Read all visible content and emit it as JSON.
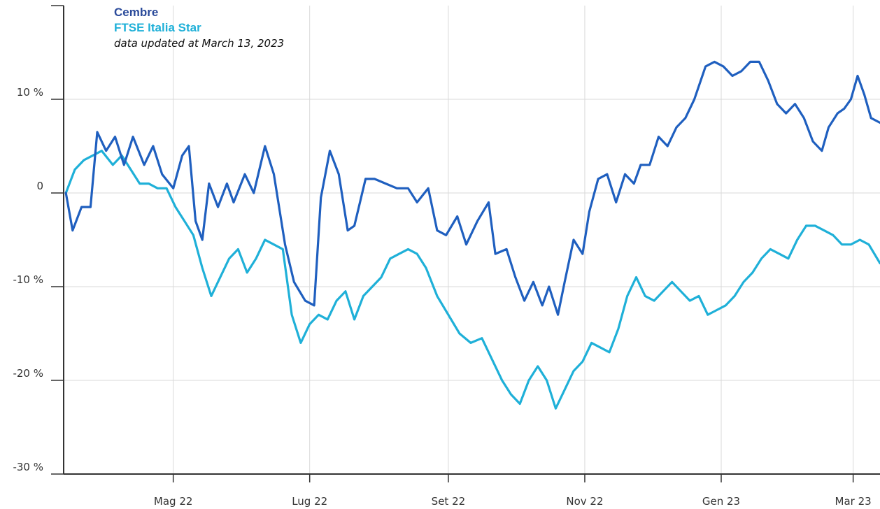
{
  "chart_data": {
    "type": "line",
    "legend": {
      "series1_label": "Cembre",
      "series2_label": "FTSE Italia Star",
      "note": "data updated at March 13, 2023"
    },
    "y_ticks": [
      {
        "value": 10,
        "label": "10 %"
      },
      {
        "value": 0,
        "label": "0"
      },
      {
        "value": -10,
        "label": "-10 %"
      },
      {
        "value": -20,
        "label": "-20 %"
      },
      {
        "value": -30,
        "label": "-30 %"
      }
    ],
    "x_ticks": [
      {
        "date": "2022-05-01",
        "label": "Mag 22"
      },
      {
        "date": "2022-07-01",
        "label": "Lug 22"
      },
      {
        "date": "2022-09-01",
        "label": "Set 22"
      },
      {
        "date": "2022-11-01",
        "label": "Nov 22"
      },
      {
        "date": "2023-01-01",
        "label": "Gen 23"
      },
      {
        "date": "2023-03-01",
        "label": "Mar 23"
      }
    ],
    "ylim": [
      -30,
      20
    ],
    "xlim": [
      "2022-03-13",
      "2023-03-13"
    ],
    "grid": true,
    "legend_position": "top-left",
    "series": [
      {
        "name": "Cembre",
        "color": "#1f5fbf",
        "points": [
          [
            "2022-03-14",
            0.0
          ],
          [
            "2022-03-17",
            -4.0
          ],
          [
            "2022-03-21",
            -1.5
          ],
          [
            "2022-03-25",
            -1.5
          ],
          [
            "2022-03-28",
            6.5
          ],
          [
            "2022-04-01",
            4.5
          ],
          [
            "2022-04-05",
            6.0
          ],
          [
            "2022-04-09",
            3.0
          ],
          [
            "2022-04-13",
            6.0
          ],
          [
            "2022-04-18",
            3.0
          ],
          [
            "2022-04-22",
            5.0
          ],
          [
            "2022-04-26",
            2.0
          ],
          [
            "2022-05-01",
            0.5
          ],
          [
            "2022-05-05",
            4.0
          ],
          [
            "2022-05-08",
            5.0
          ],
          [
            "2022-05-11",
            -3.0
          ],
          [
            "2022-05-14",
            -5.0
          ],
          [
            "2022-05-17",
            1.0
          ],
          [
            "2022-05-21",
            -1.5
          ],
          [
            "2022-05-25",
            1.0
          ],
          [
            "2022-05-28",
            -1.0
          ],
          [
            "2022-06-02",
            2.0
          ],
          [
            "2022-06-06",
            0.0
          ],
          [
            "2022-06-11",
            5.0
          ],
          [
            "2022-06-15",
            2.0
          ],
          [
            "2022-06-20",
            -5.5
          ],
          [
            "2022-06-24",
            -9.5
          ],
          [
            "2022-06-29",
            -11.5
          ],
          [
            "2022-07-03",
            -12.0
          ],
          [
            "2022-07-06",
            -0.5
          ],
          [
            "2022-07-10",
            4.5
          ],
          [
            "2022-07-14",
            2.0
          ],
          [
            "2022-07-18",
            -4.0
          ],
          [
            "2022-07-21",
            -3.5
          ],
          [
            "2022-07-26",
            1.5
          ],
          [
            "2022-07-30",
            1.5
          ],
          [
            "2022-08-04",
            1.0
          ],
          [
            "2022-08-09",
            0.5
          ],
          [
            "2022-08-14",
            0.5
          ],
          [
            "2022-08-18",
            -1.0
          ],
          [
            "2022-08-23",
            0.5
          ],
          [
            "2022-08-27",
            -4.0
          ],
          [
            "2022-08-31",
            -4.5
          ],
          [
            "2022-09-05",
            -2.5
          ],
          [
            "2022-09-09",
            -5.5
          ],
          [
            "2022-09-14",
            -3.0
          ],
          [
            "2022-09-19",
            -1.0
          ],
          [
            "2022-09-22",
            -6.5
          ],
          [
            "2022-09-27",
            -6.0
          ],
          [
            "2022-10-01",
            -9.0
          ],
          [
            "2022-10-05",
            -11.5
          ],
          [
            "2022-10-09",
            -9.5
          ],
          [
            "2022-10-13",
            -12.0
          ],
          [
            "2022-10-16",
            -10.0
          ],
          [
            "2022-10-20",
            -13.0
          ],
          [
            "2022-10-23",
            -9.5
          ],
          [
            "2022-10-27",
            -5.0
          ],
          [
            "2022-10-31",
            -6.5
          ],
          [
            "2022-11-03",
            -2.0
          ],
          [
            "2022-11-07",
            1.5
          ],
          [
            "2022-11-11",
            2.0
          ],
          [
            "2022-11-15",
            -1.0
          ],
          [
            "2022-11-19",
            2.0
          ],
          [
            "2022-11-23",
            1.0
          ],
          [
            "2022-11-26",
            3.0
          ],
          [
            "2022-11-30",
            3.0
          ],
          [
            "2022-12-04",
            6.0
          ],
          [
            "2022-12-08",
            5.0
          ],
          [
            "2022-12-12",
            7.0
          ],
          [
            "2022-12-16",
            8.0
          ],
          [
            "2022-12-20",
            10.0
          ],
          [
            "2022-12-25",
            13.5
          ],
          [
            "2022-12-29",
            14.0
          ],
          [
            "2023-01-02",
            13.5
          ],
          [
            "2023-01-06",
            12.5
          ],
          [
            "2023-01-10",
            13.0
          ],
          [
            "2023-01-14",
            14.0
          ],
          [
            "2023-01-18",
            14.0
          ],
          [
            "2023-01-22",
            12.0
          ],
          [
            "2023-01-26",
            9.5
          ],
          [
            "2023-01-30",
            8.5
          ],
          [
            "2023-02-03",
            9.5
          ],
          [
            "2023-02-07",
            8.0
          ],
          [
            "2023-02-11",
            5.5
          ],
          [
            "2023-02-15",
            4.5
          ],
          [
            "2023-02-18",
            7.0
          ],
          [
            "2023-02-22",
            8.5
          ],
          [
            "2023-02-25",
            9.0
          ],
          [
            "2023-02-28",
            10.0
          ],
          [
            "2023-03-03",
            12.5
          ],
          [
            "2023-03-06",
            10.5
          ],
          [
            "2023-03-09",
            8.0
          ],
          [
            "2023-03-13",
            7.5
          ]
        ]
      },
      {
        "name": "FTSE Italia Star",
        "color": "#1fb0d8",
        "points": [
          [
            "2022-03-14",
            0.0
          ],
          [
            "2022-03-18",
            2.5
          ],
          [
            "2022-03-22",
            3.5
          ],
          [
            "2022-03-26",
            4.0
          ],
          [
            "2022-03-30",
            4.5
          ],
          [
            "2022-04-04",
            3.0
          ],
          [
            "2022-04-08",
            4.0
          ],
          [
            "2022-04-12",
            2.5
          ],
          [
            "2022-04-16",
            1.0
          ],
          [
            "2022-04-20",
            1.0
          ],
          [
            "2022-04-24",
            0.5
          ],
          [
            "2022-04-28",
            0.5
          ],
          [
            "2022-05-02",
            -1.5
          ],
          [
            "2022-05-06",
            -3.0
          ],
          [
            "2022-05-10",
            -4.5
          ],
          [
            "2022-05-14",
            -8.0
          ],
          [
            "2022-05-18",
            -11.0
          ],
          [
            "2022-05-22",
            -9.0
          ],
          [
            "2022-05-26",
            -7.0
          ],
          [
            "2022-05-30",
            -6.0
          ],
          [
            "2022-06-03",
            -8.5
          ],
          [
            "2022-06-07",
            -7.0
          ],
          [
            "2022-06-11",
            -5.0
          ],
          [
            "2022-06-15",
            -5.5
          ],
          [
            "2022-06-19",
            -6.0
          ],
          [
            "2022-06-23",
            -13.0
          ],
          [
            "2022-06-27",
            -16.0
          ],
          [
            "2022-07-01",
            -14.0
          ],
          [
            "2022-07-05",
            -13.0
          ],
          [
            "2022-07-09",
            -13.5
          ],
          [
            "2022-07-13",
            -11.5
          ],
          [
            "2022-07-17",
            -10.5
          ],
          [
            "2022-07-21",
            -13.5
          ],
          [
            "2022-07-25",
            -11.0
          ],
          [
            "2022-07-29",
            -10.0
          ],
          [
            "2022-08-02",
            -9.0
          ],
          [
            "2022-08-06",
            -7.0
          ],
          [
            "2022-08-10",
            -6.5
          ],
          [
            "2022-08-14",
            -6.0
          ],
          [
            "2022-08-18",
            -6.5
          ],
          [
            "2022-08-22",
            -8.0
          ],
          [
            "2022-08-27",
            -11.0
          ],
          [
            "2022-09-01",
            -13.0
          ],
          [
            "2022-09-06",
            -15.0
          ],
          [
            "2022-09-11",
            -16.0
          ],
          [
            "2022-09-16",
            -15.5
          ],
          [
            "2022-09-21",
            -18.0
          ],
          [
            "2022-09-25",
            -20.0
          ],
          [
            "2022-09-29",
            -21.5
          ],
          [
            "2022-10-03",
            -22.5
          ],
          [
            "2022-10-07",
            -20.0
          ],
          [
            "2022-10-11",
            -18.5
          ],
          [
            "2022-10-15",
            -20.0
          ],
          [
            "2022-10-19",
            -23.0
          ],
          [
            "2022-10-23",
            -21.0
          ],
          [
            "2022-10-27",
            -19.0
          ],
          [
            "2022-10-31",
            -18.0
          ],
          [
            "2022-11-04",
            -16.0
          ],
          [
            "2022-11-08",
            -16.5
          ],
          [
            "2022-11-12",
            -17.0
          ],
          [
            "2022-11-16",
            -14.5
          ],
          [
            "2022-11-20",
            -11.0
          ],
          [
            "2022-11-24",
            -9.0
          ],
          [
            "2022-11-28",
            -11.0
          ],
          [
            "2022-12-02",
            -11.5
          ],
          [
            "2022-12-06",
            -10.5
          ],
          [
            "2022-12-10",
            -9.5
          ],
          [
            "2022-12-14",
            -10.5
          ],
          [
            "2022-12-18",
            -11.5
          ],
          [
            "2022-12-22",
            -11.0
          ],
          [
            "2022-12-26",
            -13.0
          ],
          [
            "2022-12-30",
            -12.5
          ],
          [
            "2023-01-03",
            -12.0
          ],
          [
            "2023-01-07",
            -11.0
          ],
          [
            "2023-01-11",
            -9.5
          ],
          [
            "2023-01-15",
            -8.5
          ],
          [
            "2023-01-19",
            -7.0
          ],
          [
            "2023-01-23",
            -6.0
          ],
          [
            "2023-01-27",
            -6.5
          ],
          [
            "2023-01-31",
            -7.0
          ],
          [
            "2023-02-04",
            -5.0
          ],
          [
            "2023-02-08",
            -3.5
          ],
          [
            "2023-02-12",
            -3.5
          ],
          [
            "2023-02-16",
            -4.0
          ],
          [
            "2023-02-20",
            -4.5
          ],
          [
            "2023-02-24",
            -5.5
          ],
          [
            "2023-02-28",
            -5.5
          ],
          [
            "2023-03-04",
            -5.0
          ],
          [
            "2023-03-08",
            -5.5
          ],
          [
            "2023-03-13",
            -7.5
          ]
        ]
      }
    ]
  }
}
